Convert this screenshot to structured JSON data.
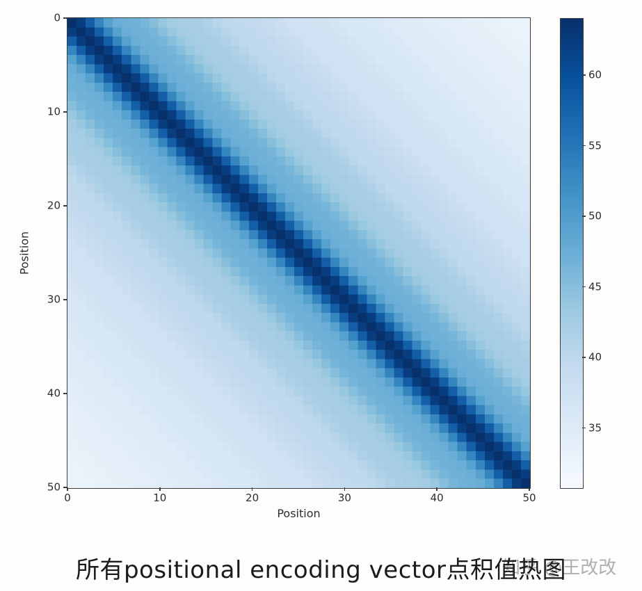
{
  "caption": {
    "text": "所有positional encoding vector点积值热图"
  },
  "watermark": {
    "text": "知乎 @王改改"
  },
  "figure": {
    "x_axis": {
      "label": "Position"
    },
    "y_axis": {
      "label": "Position"
    }
  },
  "chart_data": {
    "type": "heatmap",
    "title": "所有positional encoding vector点积值热图",
    "xlabel": "Position",
    "ylabel": "Position",
    "x_ticks": [
      0,
      10,
      20,
      30,
      40,
      50
    ],
    "y_ticks": [
      0,
      10,
      20,
      30,
      40,
      50
    ],
    "x_range": [
      0,
      50
    ],
    "y_range": [
      0,
      50
    ],
    "n_positions": 51,
    "grid": false,
    "colormap": "Blues",
    "colormap_stops": [
      [
        0.0,
        "#f7fbff"
      ],
      [
        0.125,
        "#deebf7"
      ],
      [
        0.25,
        "#c6dbef"
      ],
      [
        0.375,
        "#9ecae1"
      ],
      [
        0.5,
        "#6baed6"
      ],
      [
        0.625,
        "#4292c6"
      ],
      [
        0.75,
        "#2171b5"
      ],
      [
        0.875,
        "#08519c"
      ],
      [
        1.0,
        "#08306b"
      ]
    ],
    "value_range": [
      30.8,
      64
    ],
    "colorbar_ticks": [
      35,
      40,
      45,
      50,
      55,
      60
    ],
    "colorbar_position": "right",
    "matrix_structure": "toeplitz: value(i,j) = diagonal_profile[abs(i-j)] — dot products of sinusoidal positional encoding vectors (max on diagonal = 64)",
    "diagonal_profile": [
      64.0,
      62.3,
      58.1,
      53.2,
      49.4,
      47.5,
      47.1,
      47.0,
      46.4,
      45.1,
      43.7,
      42.7,
      42.4,
      42.4,
      42.1,
      41.5,
      40.6,
      39.9,
      39.6,
      39.6,
      39.5,
      39.0,
      38.5,
      38.0,
      37.6,
      37.6,
      37.5,
      37.2,
      36.9,
      36.5,
      36.1,
      36.0,
      36.0,
      35.8,
      35.6,
      35.2,
      34.9,
      34.8,
      34.8,
      34.6,
      34.5,
      34.2,
      33.9,
      33.8,
      33.7,
      33.7,
      33.5,
      33.2,
      33.0,
      32.9,
      32.8
    ]
  }
}
